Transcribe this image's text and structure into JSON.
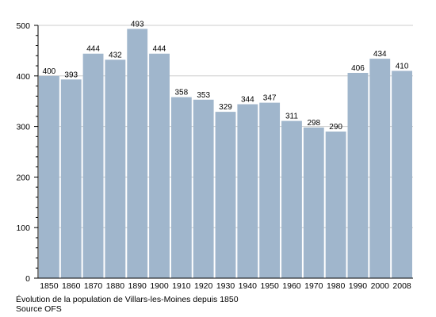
{
  "chart_data": {
    "type": "bar",
    "categories": [
      "1850",
      "1860",
      "1870",
      "1880",
      "1890",
      "1900",
      "1910",
      "1920",
      "1930",
      "1940",
      "1950",
      "1960",
      "1970",
      "1980",
      "1990",
      "2000",
      "2008"
    ],
    "values": [
      400,
      393,
      444,
      432,
      493,
      444,
      358,
      353,
      329,
      344,
      347,
      311,
      298,
      290,
      406,
      434,
      410
    ],
    "ylim": [
      0,
      500
    ],
    "yticks": [
      0,
      100,
      200,
      300,
      400,
      500
    ],
    "bar_color": "#a0b6cc",
    "grid_color": "#cccccc",
    "grid": true,
    "title": "",
    "xlabel": "",
    "ylabel": ""
  },
  "captions": {
    "line1": "Évolution de la population de Villars-les-Moines depuis 1850",
    "line2": "Source OFS"
  }
}
